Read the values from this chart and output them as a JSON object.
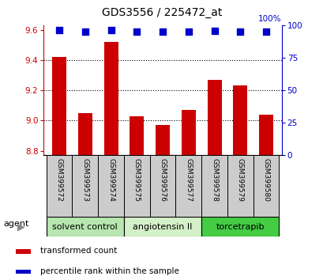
{
  "title": "GDS3556 / 225472_at",
  "samples": [
    "GSM399572",
    "GSM399573",
    "GSM399574",
    "GSM399575",
    "GSM399576",
    "GSM399577",
    "GSM399578",
    "GSM399579",
    "GSM399580"
  ],
  "bar_values": [
    9.42,
    9.05,
    9.52,
    9.03,
    8.97,
    9.07,
    9.27,
    9.23,
    9.04
  ],
  "percentile_values": [
    96,
    95,
    96,
    95,
    95,
    95,
    95.5,
    95,
    95
  ],
  "ylim_left": [
    8.77,
    9.63
  ],
  "ylim_right": [
    0,
    100
  ],
  "yticks_left": [
    8.8,
    9.0,
    9.2,
    9.4,
    9.6
  ],
  "yticks_right": [
    0,
    25,
    50,
    75,
    100
  ],
  "bar_color": "#cc0000",
  "dot_color": "#0000cc",
  "bar_bottom": 8.77,
  "agents": [
    {
      "label": "solvent control",
      "samples": [
        0,
        1,
        2
      ],
      "color": "#b8e6b0"
    },
    {
      "label": "angiotensin II",
      "samples": [
        3,
        4,
        5
      ],
      "color": "#d4f0c8"
    },
    {
      "label": "torcetrapib",
      "samples": [
        6,
        7,
        8
      ],
      "color": "#44cc44"
    }
  ],
  "xtick_bg_color": "#cccccc",
  "legend_bar_label": "transformed count",
  "legend_dot_label": "percentile rank within the sample",
  "xlabel_agent": "agent",
  "title_color": "#000000",
  "left_axis_color": "#cc0000",
  "right_axis_color": "#0000cc",
  "plot_bg": "#ffffff",
  "bar_width": 0.55
}
